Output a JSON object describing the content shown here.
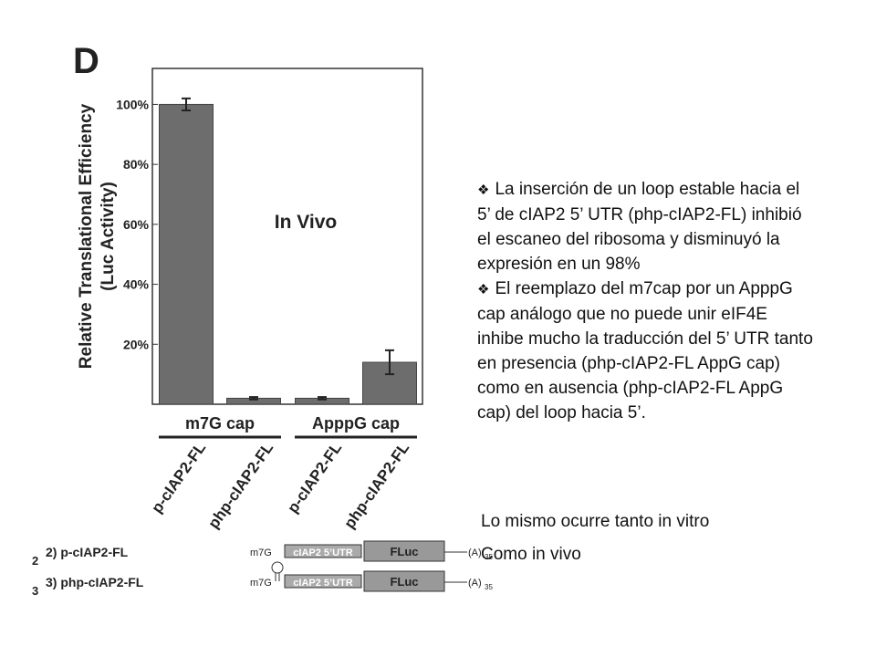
{
  "chart_data": {
    "type": "bar",
    "panel_label": "D",
    "ylabel": [
      "Relative Translational Efficiency",
      "(Luc Activity)"
    ],
    "annotation": "In Vivo",
    "categories": [
      "p-cIAP2-FL",
      "php-cIAP2-FL",
      "p-cIAP2-FL",
      "php-cIAP2-FL"
    ],
    "groups": [
      {
        "label": "m7G cap",
        "members": [
          0,
          1
        ]
      },
      {
        "label": "ApppG cap",
        "members": [
          2,
          3
        ]
      }
    ],
    "values": [
      100,
      2,
      2,
      14
    ],
    "errors": [
      2,
      0.4,
      0.4,
      4
    ],
    "color": "#6d6d6d",
    "ylim": [
      0,
      112
    ],
    "yticks": [
      {
        "value": 20,
        "label": "20%"
      },
      {
        "value": 40,
        "label": "40%"
      },
      {
        "value": 60,
        "label": "60%"
      },
      {
        "value": 80,
        "label": "80%"
      },
      {
        "value": 100,
        "label": "100%"
      }
    ]
  },
  "constructs": [
    {
      "number": "2",
      "label": "2) p-cIAP2-FL",
      "cap": "m7G",
      "utr": "cIAP2 5’UTR",
      "gene": "FLuc",
      "tail": "(A)",
      "tail_length": "35"
    },
    {
      "number": "3",
      "label": "3) php-cIAP2-FL",
      "cap": "m7G",
      "utr": "cIAP2 5’UTR",
      "gene": "FLuc",
      "tail": "(A)",
      "tail_length": "35"
    }
  ],
  "bullets": [
    "La inserción de un loop estable hacia el 5’ de cIAP2 5’ UTR (php-cIAP2-FL) inhibió el escaneo del ribosoma y disminuyó la expresión en un 98%",
    "El reemplazo del m7cap por un ApppG cap análogo que no puede unir eIF4E inhibe mucho la traducción del 5’ UTR tanto en presencia (php-cIAP2-FL AppG cap) como en ausencia (php-cIAP2-FL AppG cap) del loop hacia 5’."
  ],
  "notes": [
    "Lo mismo ocurre tanto in vitro",
    "Como in vivo"
  ]
}
